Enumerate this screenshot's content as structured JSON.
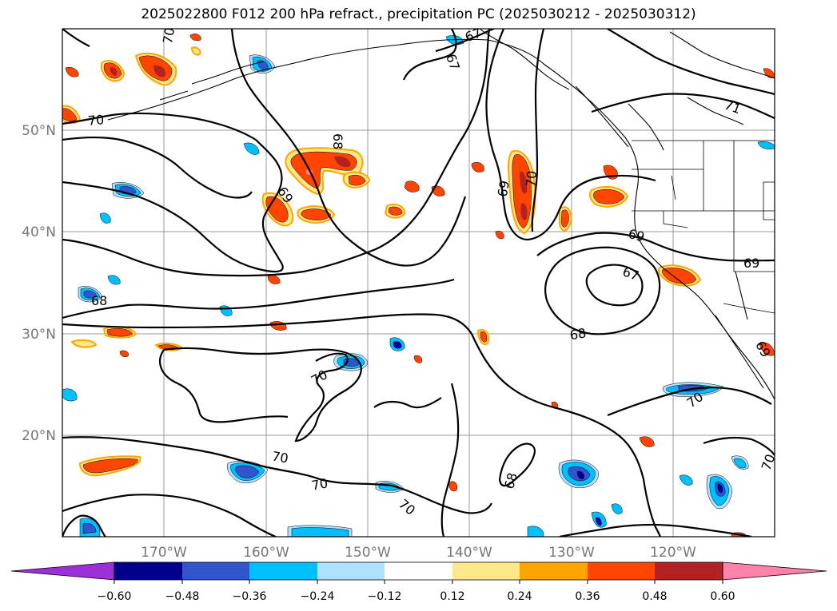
{
  "title": "2025022800 F012 200 hPa refract., precipitation PC (2025030212 - 2025030312)",
  "map": {
    "lat_labels": [
      "50°N",
      "40°N",
      "30°N",
      "20°N"
    ],
    "lon_labels": [
      "170°W",
      "160°W",
      "150°W",
      "140°W",
      "130°W",
      "120°W"
    ],
    "contour_labels": [
      "67",
      "67",
      "71",
      "70",
      "68",
      "69",
      "69",
      "70",
      "69",
      "69",
      "67",
      "68",
      "68",
      "70",
      "70",
      "70",
      "70",
      "70",
      "68",
      "70",
      "70",
      "69"
    ]
  },
  "colorbar": {
    "tick_labels": [
      "−0.60",
      "−0.48",
      "−0.36",
      "−0.24",
      "−0.12",
      "0.12",
      "0.24",
      "0.36",
      "0.48",
      "0.60"
    ],
    "colors": [
      "#9b30d9",
      "#00008b",
      "#3355cc",
      "#00bfff",
      "#b0e0ff",
      "#ffffff",
      "#ffe88a",
      "#ffa500",
      "#ff4500",
      "#b22222",
      "#ff82ab"
    ]
  },
  "fill_colors": {
    "pos_outer": "#ffe88a",
    "pos_mid": "#ffa500",
    "pos_inner": "#ff4500",
    "pos_core": "#b22222",
    "neg_outer": "#b0e0ff",
    "neg_mid": "#00bfff",
    "neg_inner": "#3355cc",
    "neg_core": "#00008b"
  }
}
